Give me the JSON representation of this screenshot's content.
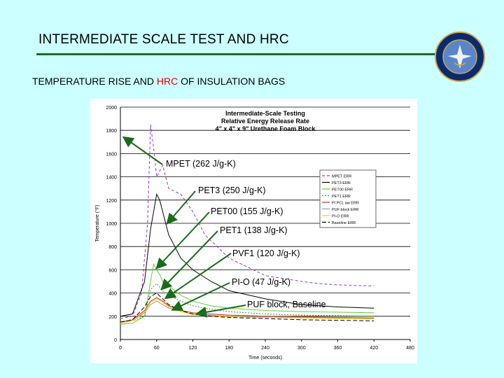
{
  "slide": {
    "title": "INTERMEDIATE SCALE TEST AND HRC",
    "subtitle_part1": "TEMPERATURE RISE AND ",
    "subtitle_hrc": "HRC",
    "subtitle_part2": " OF INSULATION BAGS"
  },
  "colors": {
    "background": "#ccffff",
    "title_rule": "#1c6b2a",
    "hrc_text": "#e00000",
    "arrow": "#1a6b1a"
  },
  "callouts": [
    {
      "label": "MPET (262 J/g-K)"
    },
    {
      "label": "PET3 (250 J/g-K)"
    },
    {
      "label": "PET00 (155 J/g-K)"
    },
    {
      "label": "PET1 (138 J/g-K)"
    },
    {
      "label": "PVF1 (120 J/g-K)"
    },
    {
      "label": "PI-O (47 J/g-K)"
    },
    {
      "label": "PUF block, Baseline"
    }
  ],
  "chart_data": {
    "type": "line",
    "title": "Intermediate-Scale Testing",
    "title_lines": [
      "Intermediate-Scale Testing",
      "Relative Energy Release Rate",
      "4\" x 4\" x 9\" Urethane Foam Block"
    ],
    "xlabel": "Time (seconds)",
    "ylabel": "Temperature (°F)",
    "xlim": [
      0,
      480
    ],
    "ylim": [
      0,
      2000
    ],
    "xticks": [
      0,
      60,
      120,
      180,
      240,
      300,
      360,
      420,
      480
    ],
    "yticks": [
      0,
      200,
      400,
      600,
      800,
      1000,
      1200,
      1400,
      1600,
      1800,
      2000
    ],
    "grid": "horizontal",
    "legend_position": "top-right",
    "series": [
      {
        "name": "MPET ERR",
        "color": "#9933cc",
        "dash": "4,3",
        "x": [
          0,
          20,
          35,
          45,
          50,
          55,
          60,
          70,
          80,
          100,
          120,
          140,
          160,
          180,
          200,
          240,
          300,
          330,
          360,
          420
        ],
        "y": [
          180,
          200,
          400,
          1000,
          1850,
          1650,
          1400,
          1500,
          1300,
          1250,
          1100,
          900,
          800,
          700,
          650,
          550,
          500,
          480,
          470,
          460
        ]
      },
      {
        "name": "PET3 ERR",
        "color": "#000000",
        "dash": "",
        "x": [
          0,
          20,
          40,
          50,
          60,
          65,
          70,
          80,
          100,
          120,
          150,
          180,
          240,
          300,
          360,
          420
        ],
        "y": [
          200,
          220,
          500,
          950,
          1250,
          1200,
          1100,
          900,
          700,
          600,
          500,
          420,
          350,
          300,
          280,
          270
        ]
      },
      {
        "name": "PET00 ERR",
        "color": "#66cc33",
        "dash": "",
        "x": [
          0,
          20,
          40,
          50,
          55,
          60,
          65,
          70,
          80,
          100,
          120,
          150,
          180,
          240,
          300,
          360,
          420
        ],
        "y": [
          130,
          140,
          200,
          500,
          650,
          600,
          560,
          500,
          460,
          380,
          330,
          290,
          270,
          250,
          240,
          235,
          230
        ]
      },
      {
        "name": "PET1 ERR",
        "color": "#339933",
        "dash": "2,2",
        "x": [
          0,
          20,
          40,
          50,
          60,
          70,
          80,
          100,
          120,
          150,
          180,
          240,
          300,
          360,
          420
        ],
        "y": [
          150,
          160,
          200,
          430,
          480,
          420,
          380,
          330,
          290,
          260,
          240,
          220,
          210,
          205,
          200
        ]
      },
      {
        "name": "PI PCL aw ERR",
        "color": "#cc3333",
        "dash": "",
        "x": [
          0,
          20,
          40,
          50,
          60,
          70,
          80,
          100,
          120,
          150,
          180,
          240,
          300,
          360,
          420
        ],
        "y": [
          150,
          170,
          250,
          330,
          360,
          330,
          290,
          250,
          230,
          220,
          210,
          200,
          195,
          190,
          185
        ]
      },
      {
        "name": "PUF block ERR",
        "color": "#999999",
        "dash": "",
        "x": [
          0,
          20,
          40,
          50,
          60,
          70,
          80,
          100,
          120,
          150,
          180,
          240,
          300,
          360,
          420
        ],
        "y": [
          140,
          160,
          230,
          300,
          330,
          300,
          270,
          240,
          220,
          210,
          200,
          195,
          190,
          185,
          180
        ]
      },
      {
        "name": "PI-O ERR",
        "color": "#ffcc00",
        "dash": "",
        "x": [
          0,
          20,
          40,
          50,
          60,
          70,
          80,
          100,
          120,
          150,
          180,
          240,
          300,
          360,
          420
        ],
        "y": [
          140,
          160,
          240,
          320,
          350,
          320,
          280,
          240,
          215,
          205,
          195,
          190,
          185,
          180,
          178
        ]
      },
      {
        "name": "Baseline ERR",
        "color": "#000000",
        "dash": "6,3",
        "x": [
          0,
          20,
          40,
          50,
          60,
          70,
          80,
          100,
          120,
          150,
          180,
          240,
          300,
          360,
          420
        ],
        "y": [
          150,
          170,
          280,
          370,
          400,
          350,
          300,
          250,
          220,
          200,
          190,
          180,
          170,
          165,
          160
        ]
      }
    ]
  }
}
